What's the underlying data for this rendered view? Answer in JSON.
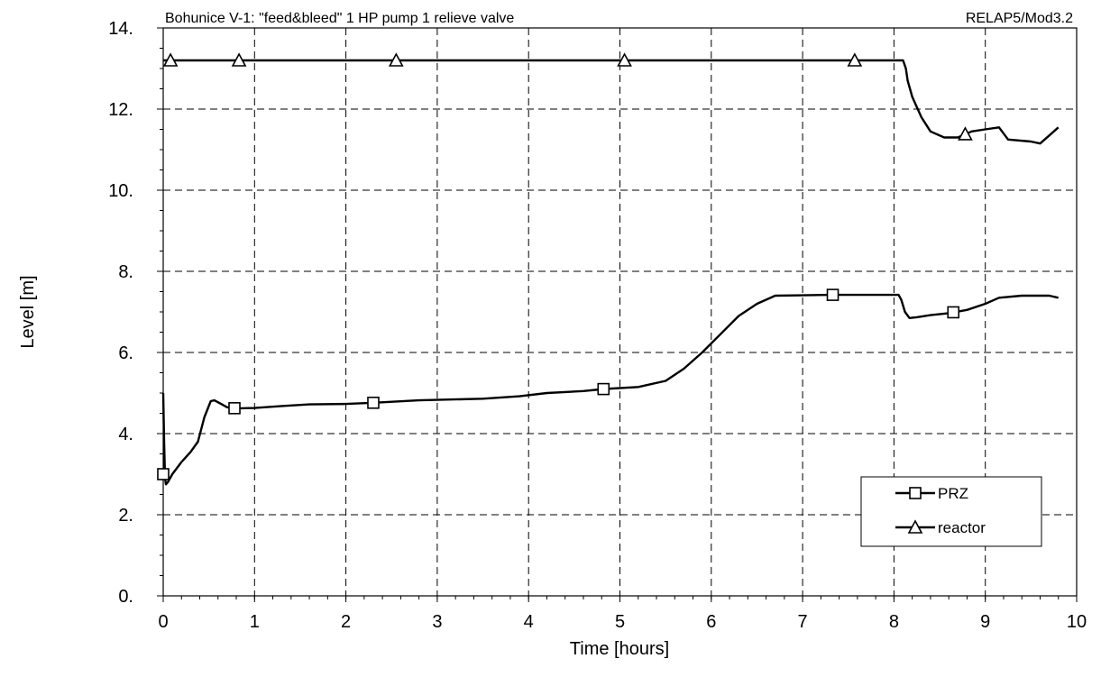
{
  "chart_data": {
    "type": "line",
    "title": "Bohunice V-1: \"feed&bleed\" 1 HP pump 1 relieve valve",
    "subtitle": "RELAP5/Mod3.2",
    "xlabel": "Time [hours]",
    "ylabel": "Level [m]",
    "xlim": [
      0,
      10
    ],
    "ylim": [
      0,
      14
    ],
    "x_ticks": [
      0,
      1,
      2,
      3,
      4,
      5,
      6,
      7,
      8,
      9,
      10
    ],
    "x_tick_labels": [
      "0",
      "1",
      "2",
      "3",
      "4",
      "5",
      "6",
      "7",
      "8",
      "9",
      "10"
    ],
    "y_ticks": [
      0,
      2,
      4,
      6,
      8,
      10,
      12,
      14
    ],
    "y_tick_labels": [
      "0.",
      "2.",
      "4.",
      "6.",
      "8.",
      "10.",
      "12.",
      "14."
    ],
    "grid": true,
    "legend_position": "bottom-right",
    "series": [
      {
        "name": "PRZ",
        "marker": "square",
        "x": [
          0,
          0.01,
          0.02,
          0.03,
          0.05,
          0.1,
          0.2,
          0.3,
          0.38,
          0.45,
          0.52,
          0.56,
          0.62,
          0.7,
          0.8,
          1.0,
          1.3,
          1.6,
          2.0,
          2.3,
          2.8,
          3.5,
          3.9,
          4.2,
          4.6,
          4.83,
          5.2,
          5.5,
          5.7,
          5.9,
          6.1,
          6.3,
          6.5,
          6.7,
          7.3,
          8.05,
          8.08,
          8.12,
          8.17,
          8.25,
          8.4,
          8.6,
          8.8,
          9.0,
          9.15,
          9.4,
          9.7,
          9.8
        ],
        "y": [
          5.0,
          3.8,
          2.9,
          2.75,
          2.8,
          3.0,
          3.3,
          3.55,
          3.8,
          4.4,
          4.8,
          4.82,
          4.75,
          4.65,
          4.62,
          4.63,
          4.68,
          4.72,
          4.73,
          4.76,
          4.82,
          4.86,
          4.92,
          5.0,
          5.05,
          5.1,
          5.15,
          5.3,
          5.6,
          6.0,
          6.45,
          6.9,
          7.2,
          7.4,
          7.42,
          7.42,
          7.3,
          7.0,
          6.85,
          6.87,
          6.92,
          6.97,
          7.05,
          7.2,
          7.35,
          7.4,
          7.4,
          7.35
        ],
        "marker_x": [
          0.0,
          0.78,
          2.3,
          4.82,
          7.33,
          8.65
        ]
      },
      {
        "name": "reactor",
        "marker": "triangle",
        "x": [
          0,
          0.5,
          1,
          2,
          3,
          4,
          5,
          6,
          7,
          8.1,
          8.13,
          8.15,
          8.2,
          8.3,
          8.4,
          8.55,
          8.7,
          8.85,
          9.0,
          9.15,
          9.25,
          9.5,
          9.6,
          9.7,
          9.8
        ],
        "y": [
          13.2,
          13.2,
          13.2,
          13.2,
          13.2,
          13.2,
          13.2,
          13.2,
          13.2,
          13.2,
          13.0,
          12.7,
          12.3,
          11.8,
          11.45,
          11.3,
          11.3,
          11.45,
          11.5,
          11.55,
          11.25,
          11.2,
          11.15,
          11.35,
          11.55
        ],
        "marker_x": [
          0.08,
          0.83,
          2.55,
          5.05,
          7.57,
          8.78
        ]
      }
    ]
  }
}
